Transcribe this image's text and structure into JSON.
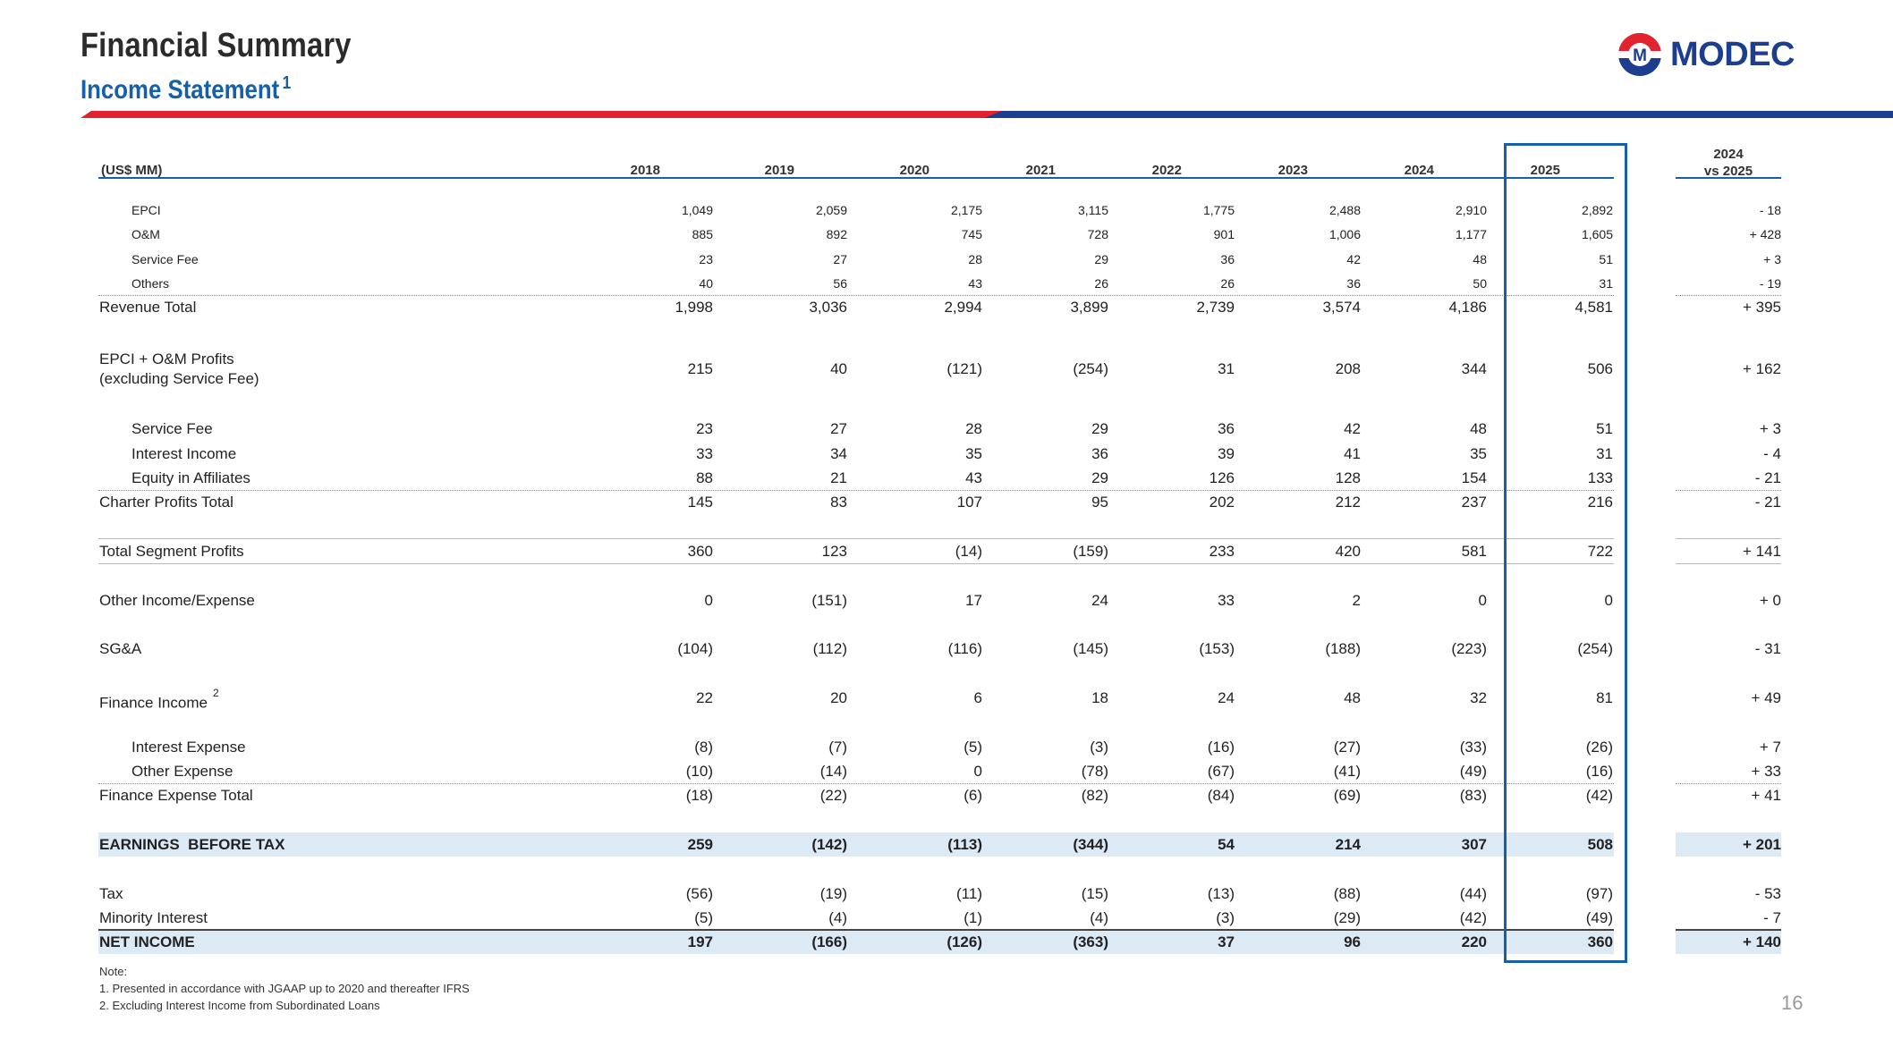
{
  "header": {
    "title": "Financial Summary",
    "subtitle": "Income Statement",
    "subtitle_sup": "1",
    "logo_text": "MODEC",
    "logo_letter": "M"
  },
  "colors": {
    "brand_blue": "#1560a8",
    "navy": "#1d3d8f",
    "red": "#e2232f",
    "highlight": "#dceaf6"
  },
  "table": {
    "unit_label": "(US$ MM)",
    "years": [
      "2018",
      "2019",
      "2020",
      "2021",
      "2022",
      "2023",
      "2024",
      "2025"
    ],
    "delta_header": [
      "2024",
      "vs 2025"
    ],
    "rows": [
      {
        "label": "EPCI",
        "values": [
          "1,049",
          "2,059",
          "2,175",
          "3,115",
          "1,775",
          "2,488",
          "2,910",
          "2,892"
        ],
        "delta": "- 18"
      },
      {
        "label": "O&M",
        "values": [
          "885",
          "892",
          "745",
          "728",
          "901",
          "1,006",
          "1,177",
          "1,605"
        ],
        "delta": "+ 428"
      },
      {
        "label": "Service Fee",
        "values": [
          "23",
          "27",
          "28",
          "29",
          "36",
          "42",
          "48",
          "51"
        ],
        "delta": "+ 3"
      },
      {
        "label": "Others",
        "values": [
          "40",
          "56",
          "43",
          "26",
          "26",
          "36",
          "50",
          "31"
        ],
        "delta": "- 19"
      },
      {
        "label": "Revenue Total",
        "values": [
          "1,998",
          "3,036",
          "2,994",
          "3,899",
          "2,739",
          "3,574",
          "4,186",
          "4,581"
        ],
        "delta": "+ 395"
      },
      {
        "label": "EPCI + O&M Profits",
        "label2": "(excluding Service Fee)",
        "values": [
          "215",
          "40",
          "(121)",
          "(254)",
          "31",
          "208",
          "344",
          "506"
        ],
        "delta": "+ 162"
      },
      {
        "label": "Service Fee",
        "values": [
          "23",
          "27",
          "28",
          "29",
          "36",
          "42",
          "48",
          "51"
        ],
        "delta": "+ 3"
      },
      {
        "label": "Interest Income",
        "values": [
          "33",
          "34",
          "35",
          "36",
          "39",
          "41",
          "35",
          "31"
        ],
        "delta": "- 4"
      },
      {
        "label": "Equity in Affiliates",
        "values": [
          "88",
          "21",
          "43",
          "29",
          "126",
          "128",
          "154",
          "133"
        ],
        "delta": "- 21"
      },
      {
        "label": "Charter Profits Total",
        "values": [
          "145",
          "83",
          "107",
          "95",
          "202",
          "212",
          "237",
          "216"
        ],
        "delta": "- 21"
      },
      {
        "label": "Total Segment Profits",
        "values": [
          "360",
          "123",
          "(14)",
          "(159)",
          "233",
          "420",
          "581",
          "722"
        ],
        "delta": "+ 141"
      },
      {
        "label": "Other Income/Expense",
        "values": [
          "0",
          "(151)",
          "17",
          "24",
          "33",
          "2",
          "0",
          "0"
        ],
        "delta": "+ 0"
      },
      {
        "label": "SG&A",
        "values": [
          "(104)",
          "(112)",
          "(116)",
          "(145)",
          "(153)",
          "(188)",
          "(223)",
          "(254)"
        ],
        "delta": "- 31"
      },
      {
        "label": "Finance Income",
        "sup": "2",
        "values": [
          "22",
          "20",
          "6",
          "18",
          "24",
          "48",
          "32",
          "81"
        ],
        "delta": "+ 49"
      },
      {
        "label": "Interest Expense",
        "values": [
          "(8)",
          "(7)",
          "(5)",
          "(3)",
          "(16)",
          "(27)",
          "(33)",
          "(26)"
        ],
        "delta": "+ 7"
      },
      {
        "label": "Other Expense",
        "values": [
          "(10)",
          "(14)",
          "0",
          "(78)",
          "(67)",
          "(41)",
          "(49)",
          "(16)"
        ],
        "delta": "+ 33"
      },
      {
        "label": "Finance Expense Total",
        "values": [
          "(18)",
          "(22)",
          "(6)",
          "(82)",
          "(84)",
          "(69)",
          "(83)",
          "(42)"
        ],
        "delta": "+ 41"
      },
      {
        "label": "EARNINGS  BEFORE TAX",
        "values": [
          "259",
          "(142)",
          "(113)",
          "(344)",
          "54",
          "214",
          "307",
          "508"
        ],
        "delta": "+ 201"
      },
      {
        "label": "Tax",
        "values": [
          "(56)",
          "(19)",
          "(11)",
          "(15)",
          "(13)",
          "(88)",
          "(44)",
          "(97)"
        ],
        "delta": "- 53"
      },
      {
        "label": "Minority Interest",
        "values": [
          "(5)",
          "(4)",
          "(1)",
          "(4)",
          "(3)",
          "(29)",
          "(42)",
          "(49)"
        ],
        "delta": "- 7"
      },
      {
        "label": "NET INCOME",
        "values": [
          "197",
          "(166)",
          "(126)",
          "(363)",
          "37",
          "96",
          "220",
          "360"
        ],
        "delta": "+ 140"
      }
    ]
  },
  "notes": [
    "Note:",
    "1. Presented in accordance with JGAAP up to 2020 and thereafter IFRS",
    "2. Excluding Interest Income from Subordinated Loans"
  ],
  "page_number": "16"
}
